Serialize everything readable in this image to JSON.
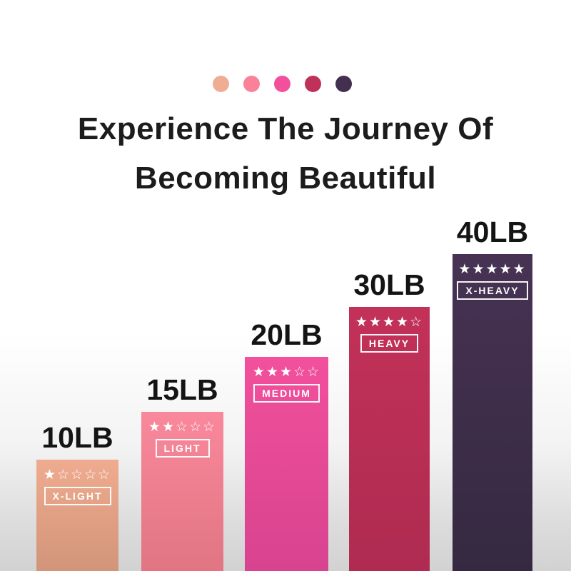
{
  "title": {
    "line1": "Experience The Journey Of",
    "line2": "Becoming Beautiful"
  },
  "palette_dots": [
    {
      "name": "x-light-dot",
      "color": "#efae93"
    },
    {
      "name": "light-dot",
      "color": "#f9819a"
    },
    {
      "name": "medium-dot",
      "color": "#f2509c"
    },
    {
      "name": "heavy-dot",
      "color": "#bf3158"
    },
    {
      "name": "x-heavy-dot",
      "color": "#433050"
    }
  ],
  "chart_data": {
    "type": "bar",
    "title": "Experience The Journey Of Becoming Beautiful",
    "categories": [
      "10LB",
      "15LB",
      "20LB",
      "30LB",
      "40LB"
    ],
    "values": [
      10,
      15,
      20,
      30,
      40
    ],
    "unit": "LB",
    "xlabel": "",
    "ylabel": "",
    "grid": false,
    "legend_position": "none",
    "bars": [
      {
        "weight_label": "10LB",
        "value": 10,
        "level_label": "X-LIGHT",
        "rating": 1,
        "rating_max": 5,
        "stars_text": "★☆☆☆☆",
        "color_top": "#efab90",
        "color_bottom": "#d29579"
      },
      {
        "weight_label": "15LB",
        "value": 15,
        "level_label": "LIGHT",
        "rating": 2,
        "rating_max": 5,
        "stars_text": "★★☆☆☆",
        "color_top": "#f9889c",
        "color_bottom": "#e17582"
      },
      {
        "weight_label": "20LB",
        "value": 20,
        "level_label": "MEDIUM",
        "rating": 3,
        "rating_max": 5,
        "stars_text": "★★★☆☆",
        "color_top": "#f2509c",
        "color_bottom": "#d8438f"
      },
      {
        "weight_label": "30LB",
        "value": 30,
        "level_label": "HEAVY",
        "rating": 4,
        "rating_max": 5,
        "stars_text": "★★★★☆",
        "color_top": "#c23158",
        "color_bottom": "#af2b51"
      },
      {
        "weight_label": "40LB",
        "value": 40,
        "level_label": "X-HEAVY",
        "rating": 5,
        "rating_max": 5,
        "stars_text": "★★★★★",
        "color_top": "#473253",
        "color_bottom": "#352941"
      }
    ]
  }
}
